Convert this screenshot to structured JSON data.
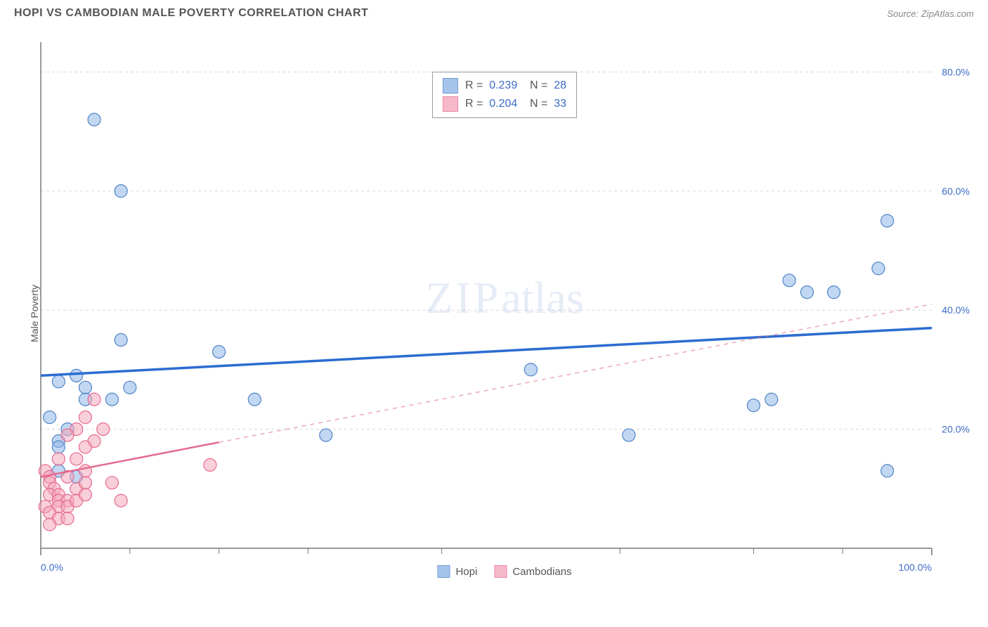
{
  "title": "HOPI VS CAMBODIAN MALE POVERTY CORRELATION CHART",
  "source": "Source: ZipAtlas.com",
  "y_axis_label": "Male Poverty",
  "watermark_zip": "ZIP",
  "watermark_atlas": "atlas",
  "chart": {
    "type": "scatter",
    "background_color": "#ffffff",
    "grid_color": "#d8d8d8",
    "axis_line_color": "#787878",
    "tick_label_color": "#3b6bc4",
    "xlim": [
      0,
      100
    ],
    "ylim": [
      0,
      85
    ],
    "x_ticks_major_labeled": [
      0,
      100
    ],
    "x_ticks_minor": [
      10,
      20,
      30,
      45,
      65,
      80,
      90
    ],
    "x_tick_labels": {
      "0": "0.0%",
      "100": "100.0%"
    },
    "y_ticks": [
      20,
      40,
      60,
      80
    ],
    "y_tick_labels": {
      "20": "20.0%",
      "40": "40.0%",
      "60": "60.0%",
      "80": "80.0%"
    },
    "marker_radius": 9,
    "marker_opacity": 0.55,
    "series": [
      {
        "name": "Hopi",
        "color": "#8fb6e8",
        "stroke": "#4f84c7",
        "points": [
          [
            6,
            72
          ],
          [
            9,
            60
          ],
          [
            9,
            35
          ],
          [
            20,
            33
          ],
          [
            24,
            25
          ],
          [
            4,
            29
          ],
          [
            2,
            28
          ],
          [
            5,
            27
          ],
          [
            10,
            27
          ],
          [
            5,
            25
          ],
          [
            8,
            25
          ],
          [
            1,
            22
          ],
          [
            3,
            20
          ],
          [
            32,
            19
          ],
          [
            2,
            18
          ],
          [
            2,
            17
          ],
          [
            55,
            30
          ],
          [
            66,
            19
          ],
          [
            80,
            24
          ],
          [
            82,
            25
          ],
          [
            84,
            45
          ],
          [
            86,
            43
          ],
          [
            89,
            43
          ],
          [
            94,
            47
          ],
          [
            95,
            55
          ],
          [
            95,
            13
          ],
          [
            2,
            13
          ],
          [
            4,
            12
          ]
        ],
        "trend": {
          "color": "#2b6cd1",
          "width": 3.5,
          "dash": "none",
          "x1": 0,
          "y1": 29,
          "x2": 100,
          "y2": 37
        },
        "stats_R": "0.239",
        "stats_N": "28"
      },
      {
        "name": "Cambodians",
        "color": "#f4a8bc",
        "stroke": "#e56b8f",
        "points": [
          [
            0.5,
            13
          ],
          [
            1,
            12
          ],
          [
            1,
            11
          ],
          [
            1.5,
            10
          ],
          [
            1,
            9
          ],
          [
            2,
            9
          ],
          [
            2,
            8
          ],
          [
            3,
            8
          ],
          [
            0.5,
            7
          ],
          [
            2,
            7
          ],
          [
            3,
            7
          ],
          [
            1,
            6
          ],
          [
            2,
            5
          ],
          [
            3,
            5
          ],
          [
            1,
            4
          ],
          [
            4,
            10
          ],
          [
            5,
            11
          ],
          [
            4,
            8
          ],
          [
            5,
            13
          ],
          [
            6,
            18
          ],
          [
            7,
            20
          ],
          [
            5,
            22
          ],
          [
            6,
            25
          ],
          [
            5,
            17
          ],
          [
            4,
            15
          ],
          [
            4,
            20
          ],
          [
            8,
            11
          ],
          [
            9,
            8
          ],
          [
            19,
            14
          ],
          [
            3,
            19
          ],
          [
            2,
            15
          ],
          [
            5,
            9
          ],
          [
            3,
            12
          ]
        ],
        "trend": {
          "color": "#e56b8f",
          "width": 2.5,
          "solid_end_x": 20,
          "x1": 0,
          "y1": 12,
          "x2": 100,
          "y2": 41
        },
        "stats_R": "0.204",
        "stats_N": "33"
      }
    ]
  },
  "top_legend": {
    "R_label": "R =",
    "N_label": "N ="
  },
  "bottom_legend": {
    "items": [
      {
        "label": "Hopi"
      },
      {
        "label": "Cambodians"
      }
    ]
  }
}
